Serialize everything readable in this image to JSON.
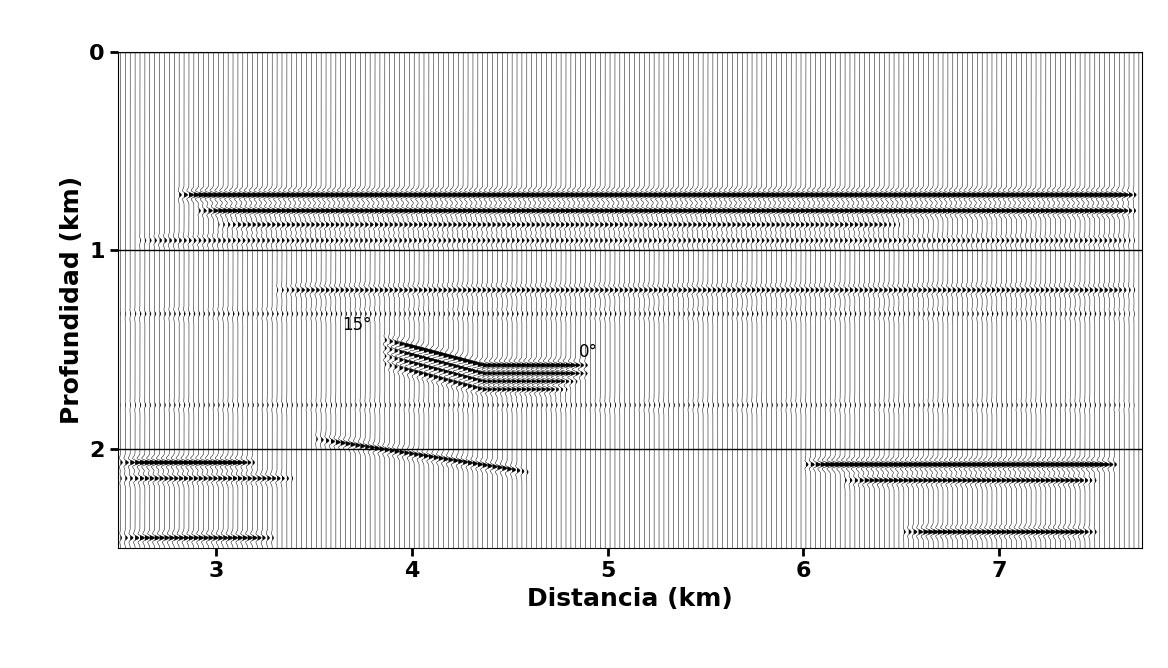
{
  "chart_data": {
    "type": "seismic_section",
    "xlabel": "Distancia (km)",
    "ylabel": "Profundidad (km)",
    "xlim": [
      2.5,
      7.73
    ],
    "ylim": [
      2.5,
      0
    ],
    "xticks": [
      3,
      4,
      5,
      6,
      7
    ],
    "yticks": [
      0,
      1,
      2
    ],
    "grid": true,
    "color": "#000000",
    "trace_spacing": 0.025,
    "reflectors": [
      {
        "x": [
          2.8,
          7.7
        ],
        "depth": [
          0.72,
          0.72
        ],
        "amplitude": 1.0
      },
      {
        "x": [
          2.9,
          7.7
        ],
        "depth": [
          0.8,
          0.8
        ],
        "amplitude": 0.8
      },
      {
        "x": [
          3.0,
          6.5
        ],
        "depth": [
          0.87,
          0.87
        ],
        "amplitude": 0.4
      },
      {
        "x": [
          2.6,
          7.7
        ],
        "depth": [
          0.95,
          0.95
        ],
        "amplitude": 0.3
      },
      {
        "x": [
          3.3,
          7.7
        ],
        "depth": [
          1.2,
          1.2
        ],
        "amplitude": 0.4
      },
      {
        "x": [
          2.5,
          7.7
        ],
        "depth": [
          1.32,
          1.32
        ],
        "amplitude": 0.15
      },
      {
        "x": [
          3.85,
          4.35,
          4.9
        ],
        "depth": [
          1.45,
          1.58,
          1.58
        ],
        "amplitude": 0.9
      },
      {
        "x": [
          3.85,
          4.35,
          4.9
        ],
        "depth": [
          1.49,
          1.62,
          1.62
        ],
        "amplitude": 0.8
      },
      {
        "x": [
          3.85,
          4.35,
          4.85
        ],
        "depth": [
          1.53,
          1.66,
          1.66
        ],
        "amplitude": 0.7
      },
      {
        "x": [
          3.85,
          4.35,
          4.8
        ],
        "depth": [
          1.57,
          1.7,
          1.7
        ],
        "amplitude": 0.6
      },
      {
        "x": [
          2.5,
          7.7
        ],
        "depth": [
          1.78,
          1.78
        ],
        "amplitude": 0.12
      },
      {
        "x": [
          3.5,
          4.6
        ],
        "depth": [
          1.95,
          2.12
        ],
        "amplitude": 0.6
      },
      {
        "x": [
          2.5,
          3.2
        ],
        "depth": [
          2.07,
          2.07
        ],
        "amplitude": 0.9
      },
      {
        "x": [
          2.5,
          3.4
        ],
        "depth": [
          2.15,
          2.15
        ],
        "amplitude": 0.5
      },
      {
        "x": [
          6.0,
          7.6
        ],
        "depth": [
          2.08,
          2.08
        ],
        "amplitude": 1.0
      },
      {
        "x": [
          6.2,
          7.5
        ],
        "depth": [
          2.16,
          2.16
        ],
        "amplitude": 0.6
      },
      {
        "x": [
          2.5,
          3.3
        ],
        "depth": [
          2.45,
          2.45
        ],
        "amplitude": 0.6
      },
      {
        "x": [
          6.5,
          7.5
        ],
        "depth": [
          2.42,
          2.42
        ],
        "amplitude": 0.7
      }
    ],
    "annotations": [
      {
        "text": "15°",
        "x": 3.72,
        "depth": 1.42
      },
      {
        "text": "0°",
        "x": 4.9,
        "depth": 1.56
      }
    ]
  }
}
